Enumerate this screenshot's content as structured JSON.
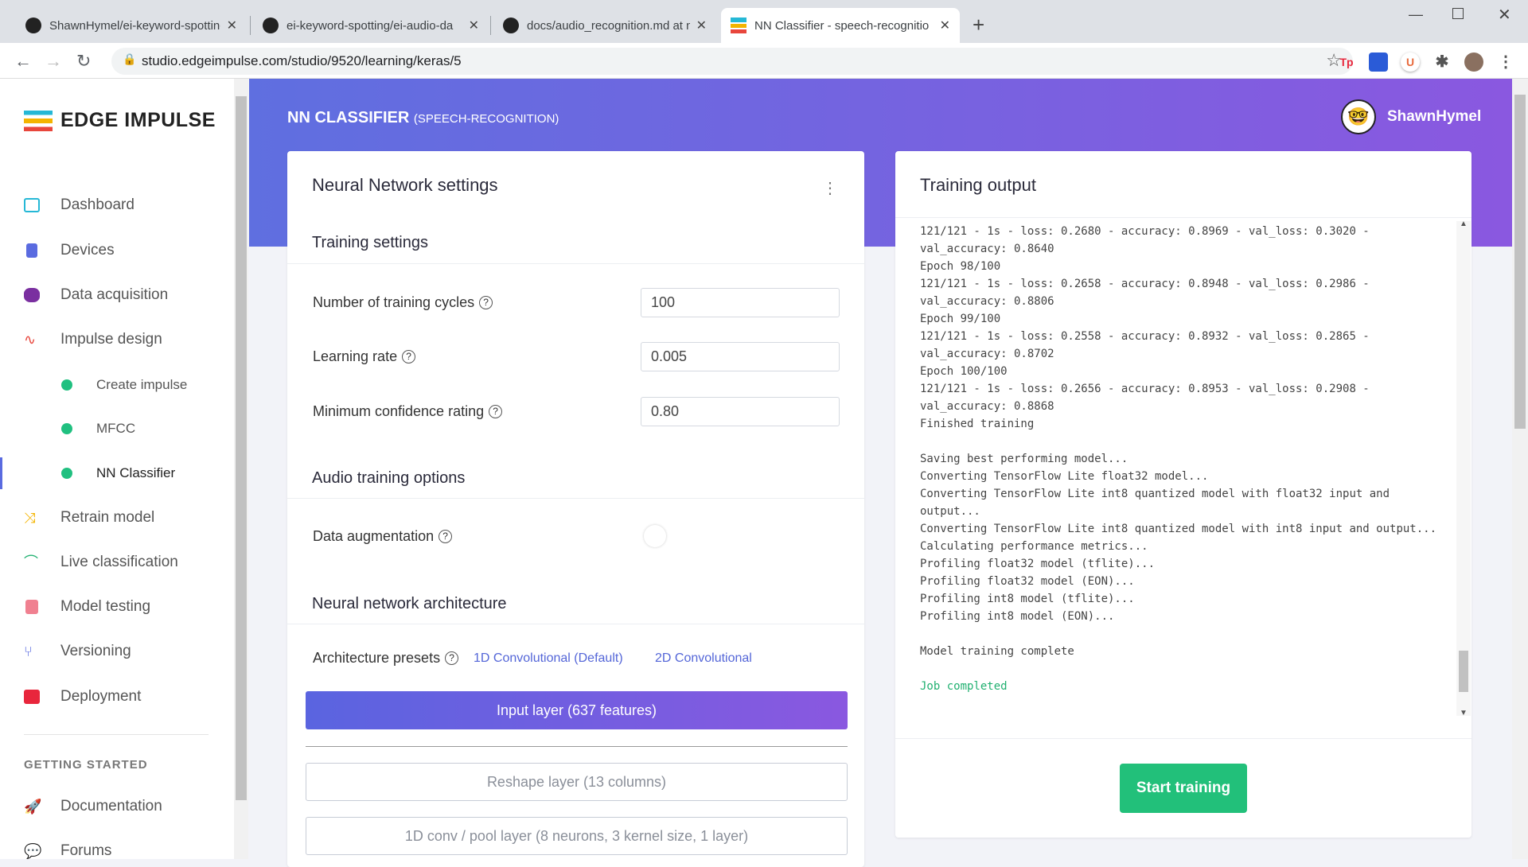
{
  "browser": {
    "tabs": [
      {
        "title": "ShawnHymel/ei-keyword-spotting",
        "icon": "github-icon"
      },
      {
        "title": "ei-keyword-spotting/ei-audio-da",
        "icon": "github-icon"
      },
      {
        "title": "docs/audio_recognition.md at m",
        "icon": "github-icon"
      },
      {
        "title": "NN Classifier - speech-recognitio",
        "icon": "edge-impulse-icon",
        "active": true
      }
    ],
    "new_tab": "+",
    "url": "studio.edgeimpulse.com/studio/9520/learning/keras/5",
    "extensions": [
      "Tp",
      "U"
    ]
  },
  "sidebar": {
    "logo": "EDGE IMPULSE",
    "items": [
      {
        "label": "Dashboard",
        "color": "#25b8d6"
      },
      {
        "label": "Devices",
        "color": "#5a6be0"
      },
      {
        "label": "Data acquisition",
        "color": "#7a2fa0"
      },
      {
        "label": "Impulse design",
        "color": "#e8463c"
      },
      {
        "label": "Create impulse"
      },
      {
        "label": "MFCC"
      },
      {
        "label": "NN Classifier"
      },
      {
        "label": "Retrain model",
        "color": "#f4b400"
      },
      {
        "label": "Live classification",
        "color": "#20b070"
      },
      {
        "label": "Model testing",
        "color": "#f08090"
      },
      {
        "label": "Versioning",
        "color": "#5a6be0"
      },
      {
        "label": "Deployment",
        "color": "#e8463c"
      }
    ],
    "getting_started": "GETTING STARTED",
    "help_items": [
      {
        "label": "Documentation"
      },
      {
        "label": "Forums"
      }
    ]
  },
  "header": {
    "title": "NN CLASSIFIER",
    "subtitle": "(SPEECH-RECOGNITION)",
    "user": "ShawnHymel"
  },
  "nn_settings": {
    "title": "Neural Network settings",
    "training_settings": "Training settings",
    "fields": [
      {
        "label": "Number of training cycles",
        "value": "100"
      },
      {
        "label": "Learning rate",
        "value": "0.005"
      },
      {
        "label": "Minimum confidence rating",
        "value": "0.80"
      }
    ],
    "audio_options": "Audio training options",
    "data_augmentation": "Data augmentation",
    "data_augmentation_enabled": false,
    "architecture": "Neural network architecture",
    "presets_label": "Architecture presets",
    "presets": [
      "1D Convolutional (Default)",
      "2D Convolutional"
    ],
    "layers": [
      "Input layer (637 features)",
      "Reshape layer (13 columns)",
      "1D conv / pool layer (8 neurons, 3 kernel size, 1 layer)"
    ]
  },
  "training_output": {
    "title": "Training output",
    "log": [
      "121/121 - 1s - loss: 0.2680 - accuracy: 0.8969 - val_loss: 0.3020 -",
      "val_accuracy: 0.8640",
      "Epoch 98/100",
      "121/121 - 1s - loss: 0.2658 - accuracy: 0.8948 - val_loss: 0.2986 -",
      "val_accuracy: 0.8806",
      "Epoch 99/100",
      "121/121 - 1s - loss: 0.2558 - accuracy: 0.8932 - val_loss: 0.2865 -",
      "val_accuracy: 0.8702",
      "Epoch 100/100",
      "121/121 - 1s - loss: 0.2656 - accuracy: 0.8953 - val_loss: 0.2908 -",
      "val_accuracy: 0.8868",
      "Finished training",
      "",
      "Saving best performing model...",
      "Converting TensorFlow Lite float32 model...",
      "Converting TensorFlow Lite int8 quantized model with float32 input and",
      "output...",
      "Converting TensorFlow Lite int8 quantized model with int8 input and output...",
      "Calculating performance metrics...",
      "Profiling float32 model (tflite)...",
      "Profiling float32 model (EON)...",
      "Profiling int8 model (tflite)...",
      "Profiling int8 model (EON)...",
      "",
      "Model training complete",
      ""
    ],
    "job_status": "Job completed",
    "start_button": "Start training"
  }
}
